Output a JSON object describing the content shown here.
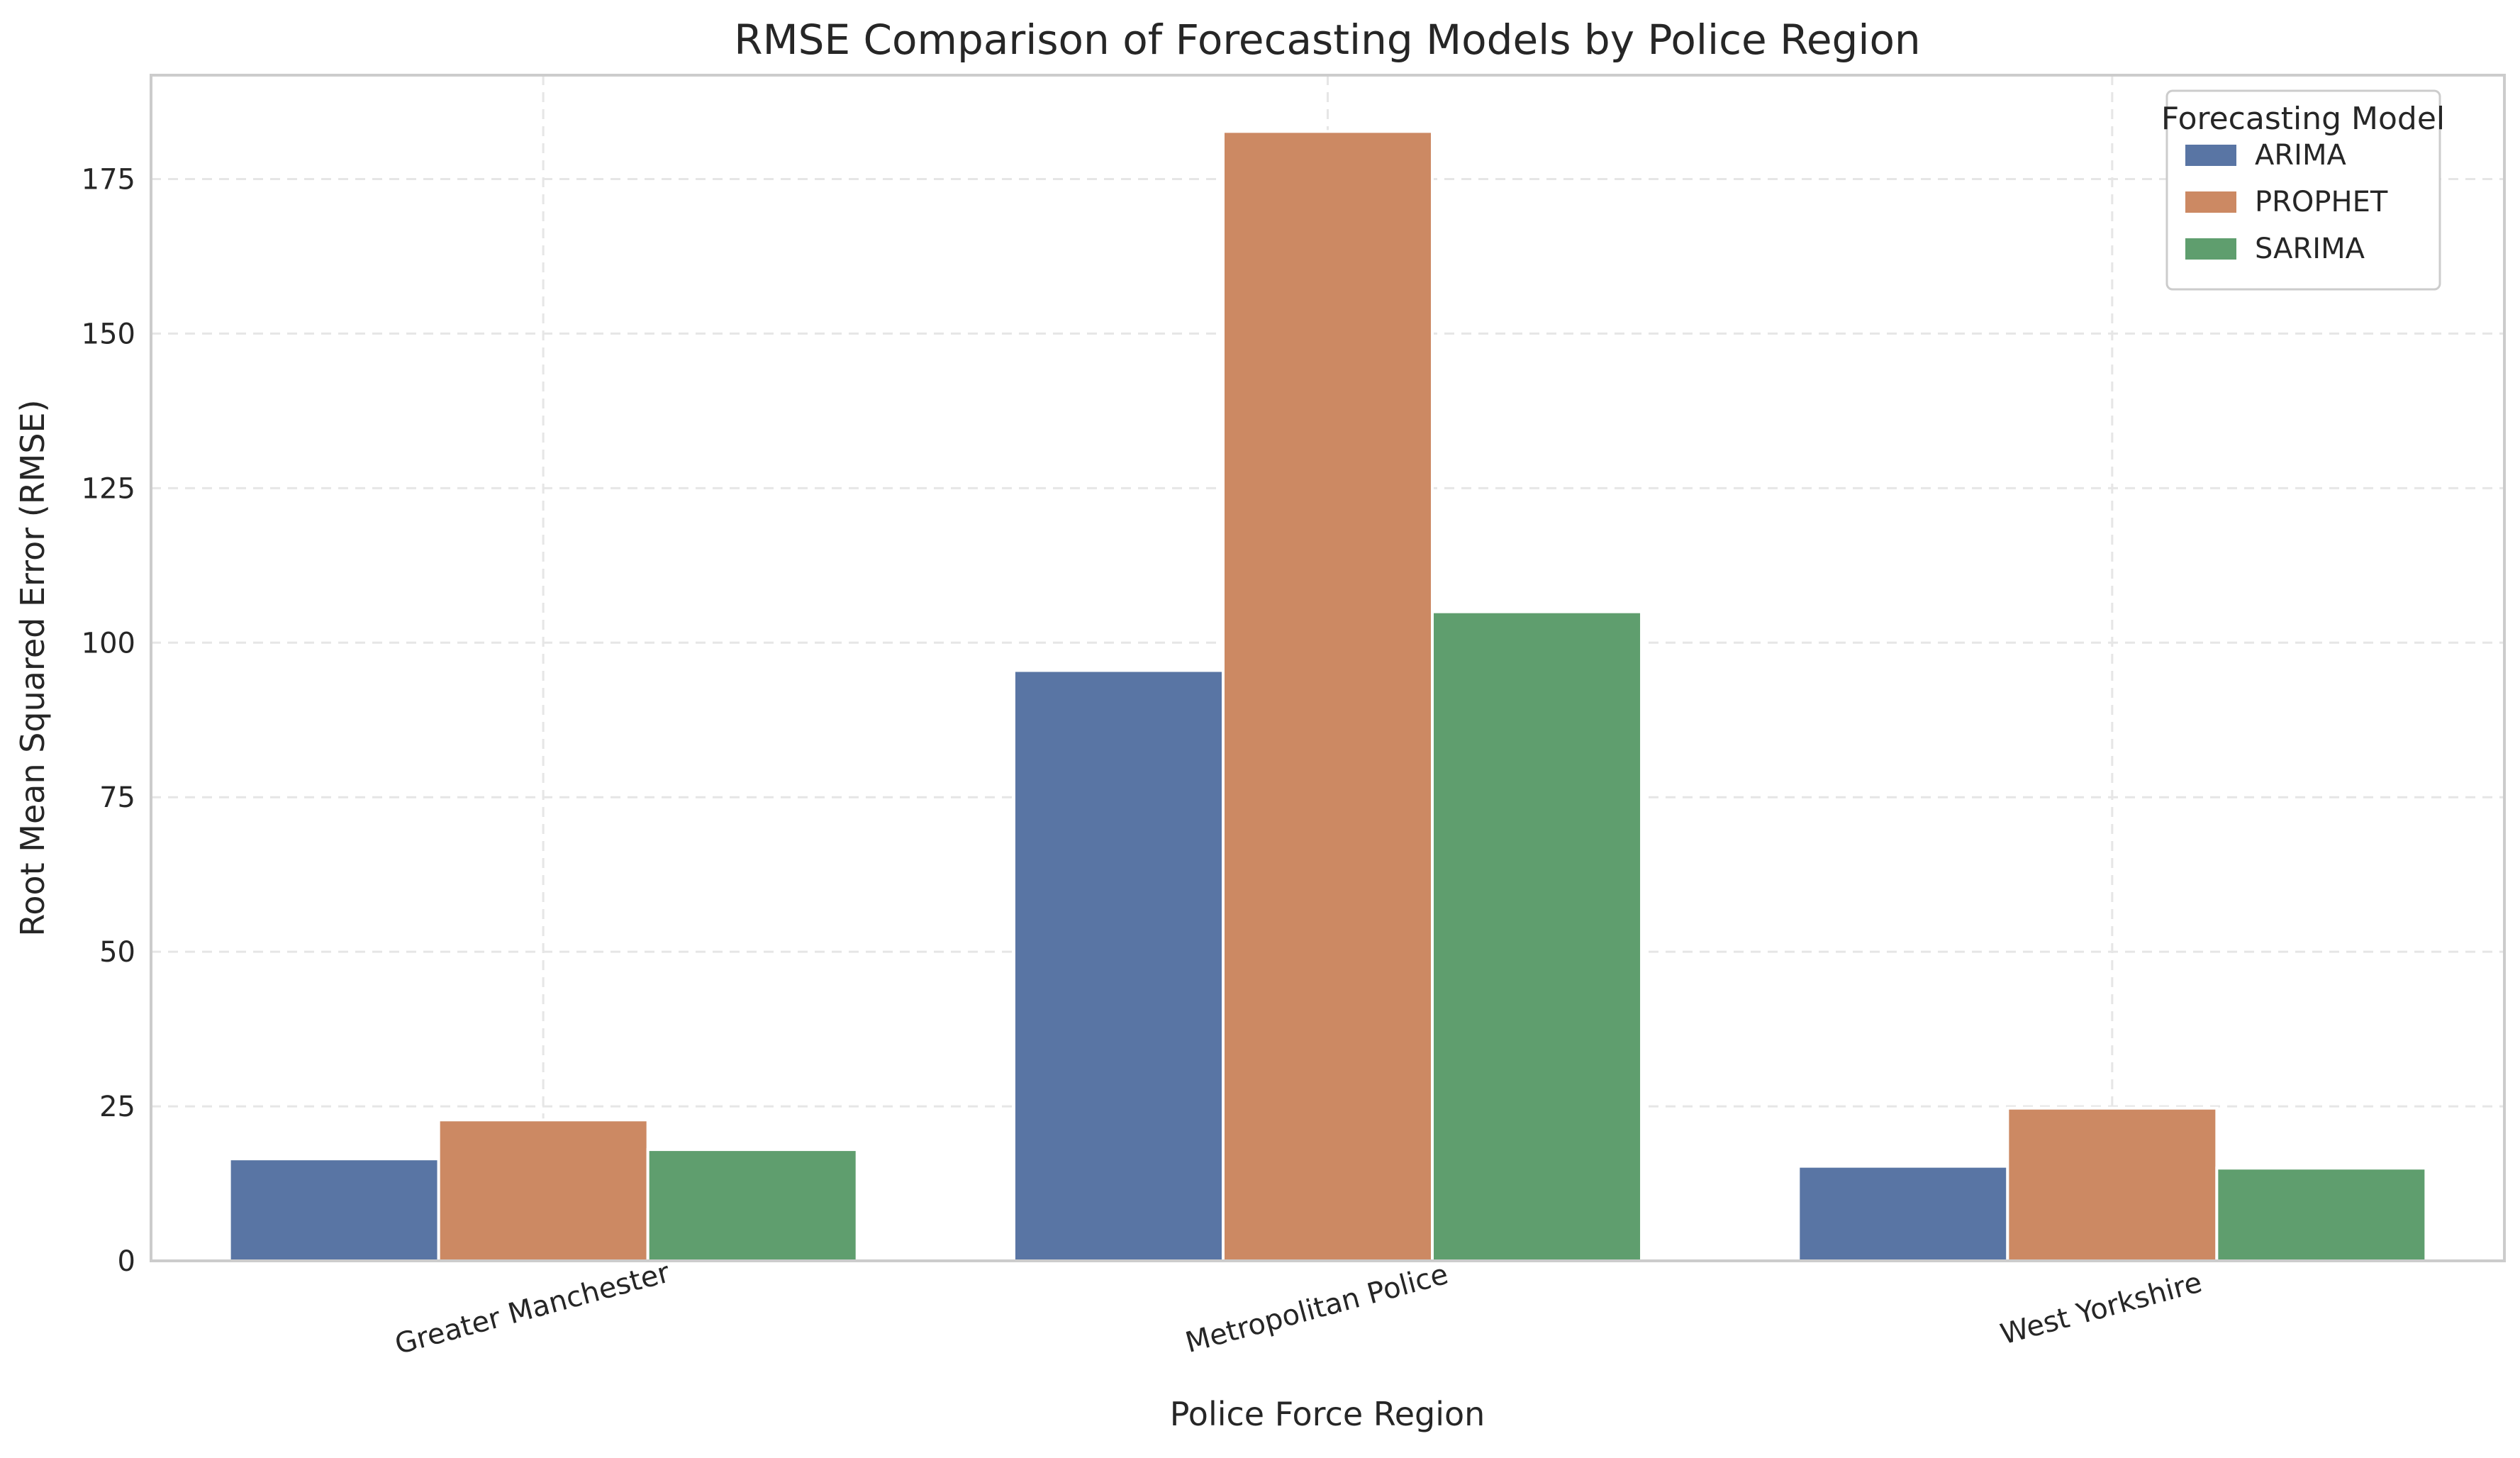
{
  "chart_data": {
    "type": "bar",
    "title": "RMSE Comparison of Forecasting Models by Police Region",
    "xlabel": "Police Force Region",
    "ylabel": "Root Mean Squared Error (RMSE)",
    "categories": [
      "Greater Manchester",
      "Metropolitan Police",
      "West Yorkshire"
    ],
    "series": [
      {
        "name": "ARIMA",
        "values": [
          16.5,
          95.5,
          15.3
        ],
        "color": "#5975a4"
      },
      {
        "name": "PROPHET",
        "values": [
          22.8,
          182.7,
          24.7
        ],
        "color": "#cc8963"
      },
      {
        "name": "SARIMA",
        "values": [
          18.0,
          105.0,
          15.0
        ],
        "color": "#5f9e6e"
      }
    ],
    "yticks": [
      0,
      25,
      50,
      75,
      100,
      125,
      150,
      175
    ],
    "ylim": [
      0,
      191.8
    ],
    "grid": true,
    "legend": {
      "title": "Forecasting Model",
      "placement": "top-right"
    }
  }
}
